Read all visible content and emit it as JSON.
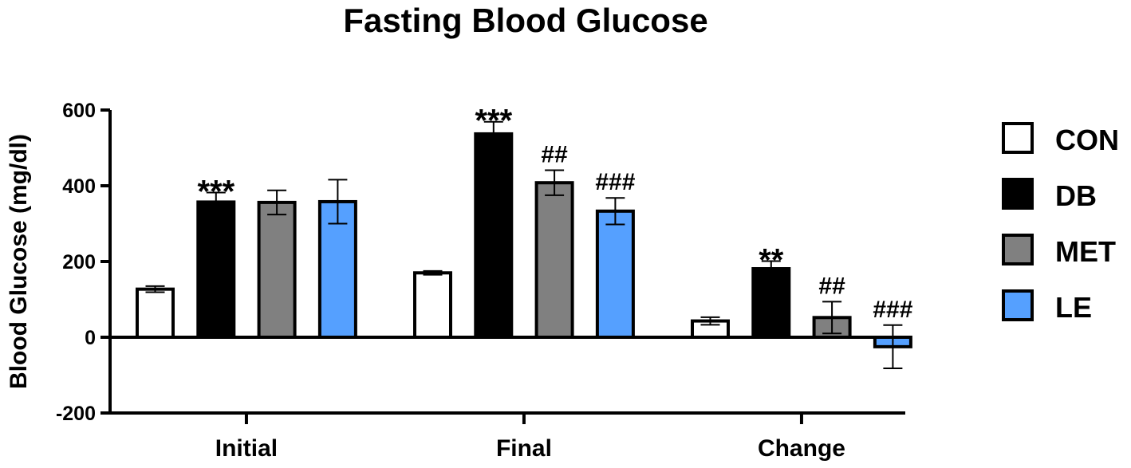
{
  "chart_data": {
    "type": "bar",
    "title": "Fasting Blood Glucose",
    "xlabel": "",
    "ylabel": "Blood Glucose (mg/dl)",
    "ylim": [
      -200,
      600
    ],
    "yticks": [
      -200,
      0,
      200,
      400,
      600
    ],
    "categories": [
      "Initial",
      "Final",
      "Change"
    ],
    "legend_position": "right",
    "series": [
      {
        "name": "CON",
        "color": "#ffffff",
        "values": [
          127,
          170,
          43
        ],
        "errors": [
          8,
          5,
          10
        ],
        "annotations": [
          "",
          "",
          ""
        ]
      },
      {
        "name": "DB",
        "color": "#000000",
        "values": [
          357,
          537,
          181
        ],
        "errors": [
          25,
          32,
          20
        ],
        "annotations": [
          "***",
          "***",
          "**"
        ]
      },
      {
        "name": "MET",
        "color": "#808080",
        "values": [
          356,
          408,
          52
        ],
        "errors": [
          32,
          33,
          42
        ],
        "annotations": [
          "",
          "##",
          "##"
        ]
      },
      {
        "name": "LE",
        "color": "#55a0ff",
        "values": [
          358,
          333,
          -25
        ],
        "errors": [
          58,
          35,
          57
        ],
        "annotations": [
          "",
          "###",
          "###"
        ]
      }
    ]
  }
}
